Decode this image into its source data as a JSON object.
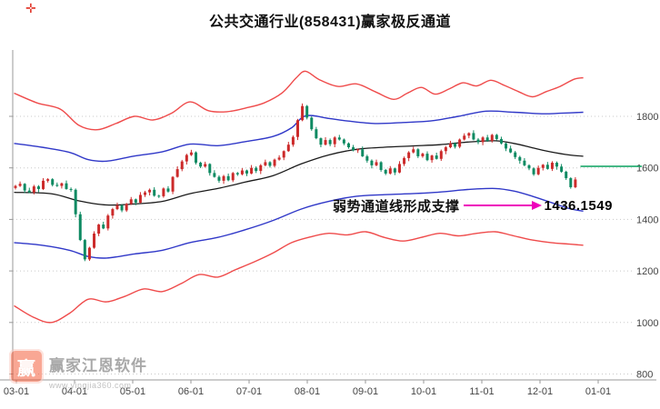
{
  "header": {
    "title": "公共交通行业(858431)赢家极反通道",
    "corner_marker": "✛"
  },
  "annotation": {
    "text": "弱势通道线形成支撑",
    "value": "1436.1549"
  },
  "watermark": {
    "logo_char": "赢",
    "name": "赢家江恩软件",
    "url": "www.yingjia360.com"
  },
  "colors": {
    "up_candle": "#cc2a2a",
    "down_candle": "#0e8a62",
    "red_line": "#ef4b4b",
    "blue_line": "#3038c8",
    "mid_line": "#1a1a1a",
    "grid": "#c8c8c8",
    "axis": "#999999",
    "tick_label": "#444444",
    "green_level": "#09a15e",
    "arrow": "#ee00bb"
  },
  "chart_data": {
    "type": "candlestick",
    "title": "公共交通行业(858431)赢家极反通道",
    "x_axis": {
      "labels": [
        "03-01",
        "04-01",
        "05-01",
        "06-01",
        "07-01",
        "08-01",
        "09-01",
        "10-01",
        "11-01",
        "12-01",
        "01-01"
      ]
    },
    "y_axis": {
      "ticks": [
        1800,
        1600,
        1400,
        1200,
        1000,
        800
      ],
      "range_shown": [
        800,
        2000
      ]
    },
    "closes_sampled": [
      1530,
      1538,
      1512,
      1505,
      1528,
      1518,
      1550,
      1556,
      1534,
      1530,
      1540,
      1518,
      1515,
      1420,
      1320,
      1245,
      1290,
      1345,
      1380,
      1365,
      1415,
      1440,
      1455,
      1435,
      1460,
      1478,
      1465,
      1495,
      1505,
      1515,
      1492,
      1490,
      1520,
      1508,
      1565,
      1595,
      1625,
      1650,
      1660,
      1620,
      1605,
      1615,
      1580,
      1565,
      1550,
      1568,
      1552,
      1580,
      1575,
      1590,
      1578,
      1600,
      1588,
      1610,
      1622,
      1608,
      1632,
      1640,
      1665,
      1690,
      1720,
      1785,
      1840,
      1795,
      1750,
      1715,
      1690,
      1708,
      1692,
      1718,
      1710,
      1695,
      1680,
      1668,
      1672,
      1645,
      1628,
      1610,
      1622,
      1592,
      1578,
      1598,
      1582,
      1615,
      1638,
      1660,
      1672,
      1645,
      1655,
      1630,
      1648,
      1635,
      1665,
      1680,
      1695,
      1682,
      1710,
      1725,
      1735,
      1710,
      1700,
      1718,
      1705,
      1728,
      1712,
      1695,
      1675,
      1660,
      1642,
      1628,
      1610,
      1598,
      1575,
      1600,
      1612,
      1596,
      1620,
      1605,
      1585,
      1560,
      1525,
      1555
    ],
    "wick_up_cycle": [
      4,
      9,
      3,
      11,
      6,
      5,
      10,
      4
    ],
    "wick_down_cycle": [
      6,
      4,
      10,
      3,
      8,
      12,
      4,
      7
    ],
    "channel_lines": {
      "red_upper": [
        [
          0,
          1890
        ],
        [
          5,
          1852
        ],
        [
          10,
          1828
        ],
        [
          14,
          1765
        ],
        [
          18,
          1748
        ],
        [
          22,
          1772
        ],
        [
          26,
          1800
        ],
        [
          30,
          1786
        ],
        [
          34,
          1812
        ],
        [
          38,
          1856
        ],
        [
          42,
          1822
        ],
        [
          46,
          1818
        ],
        [
          50,
          1832
        ],
        [
          54,
          1852
        ],
        [
          58,
          1892
        ],
        [
          61,
          1950
        ],
        [
          63,
          1975
        ],
        [
          66,
          1942
        ],
        [
          70,
          1916
        ],
        [
          74,
          1926
        ],
        [
          78,
          1896
        ],
        [
          82,
          1866
        ],
        [
          85,
          1890
        ],
        [
          88,
          1912
        ],
        [
          91,
          1886
        ],
        [
          94,
          1906
        ],
        [
          97,
          1930
        ],
        [
          100,
          1918
        ],
        [
          103,
          1940
        ],
        [
          106,
          1920
        ],
        [
          109,
          1896
        ],
        [
          112,
          1876
        ],
        [
          115,
          1896
        ],
        [
          118,
          1916
        ],
        [
          121,
          1944
        ],
        [
          123,
          1950
        ]
      ],
      "blue_upper": [
        [
          0,
          1695
        ],
        [
          6,
          1680
        ],
        [
          12,
          1660
        ],
        [
          16,
          1632
        ],
        [
          20,
          1626
        ],
        [
          26,
          1646
        ],
        [
          32,
          1662
        ],
        [
          38,
          1692
        ],
        [
          44,
          1686
        ],
        [
          50,
          1702
        ],
        [
          56,
          1722
        ],
        [
          60,
          1756
        ],
        [
          63,
          1802
        ],
        [
          68,
          1792
        ],
        [
          72,
          1782
        ],
        [
          78,
          1772
        ],
        [
          84,
          1776
        ],
        [
          90,
          1782
        ],
        [
          96,
          1800
        ],
        [
          102,
          1820
        ],
        [
          108,
          1816
        ],
        [
          114,
          1810
        ],
        [
          118,
          1812
        ],
        [
          123,
          1816
        ]
      ],
      "middle": [
        [
          0,
          1505
        ],
        [
          8,
          1500
        ],
        [
          14,
          1472
        ],
        [
          20,
          1456
        ],
        [
          26,
          1460
        ],
        [
          32,
          1470
        ],
        [
          38,
          1500
        ],
        [
          44,
          1520
        ],
        [
          50,
          1545
        ],
        [
          56,
          1570
        ],
        [
          62,
          1615
        ],
        [
          68,
          1650
        ],
        [
          74,
          1672
        ],
        [
          80,
          1680
        ],
        [
          86,
          1685
        ],
        [
          92,
          1690
        ],
        [
          98,
          1700
        ],
        [
          104,
          1705
        ],
        [
          108,
          1695
        ],
        [
          112,
          1678
        ],
        [
          116,
          1662
        ],
        [
          120,
          1650
        ],
        [
          123,
          1645
        ]
      ],
      "blue_lower": [
        [
          0,
          1310
        ],
        [
          6,
          1300
        ],
        [
          12,
          1280
        ],
        [
          16,
          1256
        ],
        [
          20,
          1250
        ],
        [
          26,
          1266
        ],
        [
          32,
          1280
        ],
        [
          38,
          1310
        ],
        [
          44,
          1330
        ],
        [
          50,
          1360
        ],
        [
          56,
          1396
        ],
        [
          62,
          1440
        ],
        [
          68,
          1470
        ],
        [
          74,
          1490
        ],
        [
          80,
          1496
        ],
        [
          86,
          1500
        ],
        [
          92,
          1506
        ],
        [
          98,
          1516
        ],
        [
          104,
          1520
        ],
        [
          108,
          1510
        ],
        [
          112,
          1490
        ],
        [
          116,
          1466
        ],
        [
          120,
          1442
        ],
        [
          123,
          1432
        ]
      ],
      "red_lower": [
        [
          0,
          1065
        ],
        [
          4,
          1022
        ],
        [
          8,
          1000
        ],
        [
          12,
          1036
        ],
        [
          16,
          1090
        ],
        [
          20,
          1080
        ],
        [
          24,
          1102
        ],
        [
          28,
          1130
        ],
        [
          32,
          1120
        ],
        [
          36,
          1150
        ],
        [
          40,
          1186
        ],
        [
          44,
          1176
        ],
        [
          48,
          1206
        ],
        [
          52,
          1236
        ],
        [
          56,
          1270
        ],
        [
          60,
          1310
        ],
        [
          64,
          1332
        ],
        [
          68,
          1346
        ],
        [
          72,
          1340
        ],
        [
          76,
          1352
        ],
        [
          80,
          1330
        ],
        [
          84,
          1316
        ],
        [
          88,
          1330
        ],
        [
          92,
          1346
        ],
        [
          96,
          1336
        ],
        [
          100,
          1346
        ],
        [
          104,
          1352
        ],
        [
          108,
          1336
        ],
        [
          112,
          1320
        ],
        [
          116,
          1310
        ],
        [
          120,
          1304
        ],
        [
          123,
          1300
        ]
      ]
    },
    "current_level": 1606,
    "support_value": 1436.1549,
    "annotation": "弱势通道线形成支撑"
  }
}
